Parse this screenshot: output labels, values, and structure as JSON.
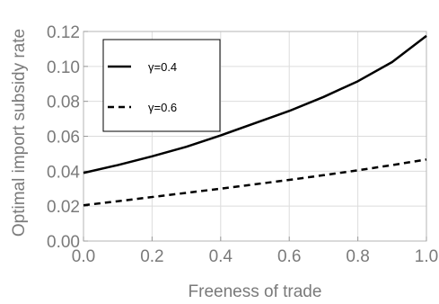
{
  "chart_data": {
    "type": "line",
    "xlabel": "Freeness of trade",
    "ylabel": "Optimal import subsidy rate",
    "xlim": [
      0.0,
      1.0
    ],
    "ylim": [
      0.0,
      0.12
    ],
    "x_ticks": [
      "0.0",
      "0.2",
      "0.4",
      "0.6",
      "0.8",
      "1.0"
    ],
    "y_ticks": [
      "0.00",
      "0.02",
      "0.04",
      "0.06",
      "0.08",
      "0.10",
      "0.12"
    ],
    "grid": true,
    "legend_position": "top-left",
    "series": [
      {
        "name": "γ=0.4",
        "style": "solid",
        "color": "#000000",
        "x": [
          0.0,
          0.1,
          0.2,
          0.3,
          0.4,
          0.5,
          0.6,
          0.7,
          0.8,
          0.9,
          1.0
        ],
        "y": [
          0.039,
          0.0435,
          0.0485,
          0.054,
          0.0605,
          0.0675,
          0.0745,
          0.0825,
          0.0915,
          0.1025,
          0.1175
        ]
      },
      {
        "name": "γ=0.6",
        "style": "dashed",
        "color": "#000000",
        "x": [
          0.0,
          0.1,
          0.2,
          0.3,
          0.4,
          0.5,
          0.6,
          0.7,
          0.8,
          0.9,
          1.0
        ],
        "y": [
          0.0205,
          0.0228,
          0.0252,
          0.0276,
          0.03,
          0.0325,
          0.035,
          0.0377,
          0.0405,
          0.0435,
          0.0467
        ]
      }
    ]
  }
}
